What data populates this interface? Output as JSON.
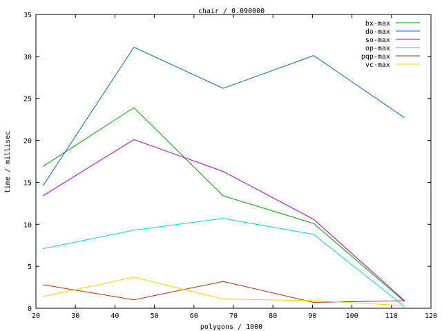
{
  "chart_data": {
    "type": "line",
    "title": "chair / 0.090000",
    "xlabel": "polygons / 1000",
    "ylabel": "time / millisec",
    "xlim": [
      20,
      120
    ],
    "ylim": [
      0,
      35
    ],
    "xticks": [
      20,
      30,
      40,
      50,
      60,
      70,
      80,
      90,
      100,
      110,
      120
    ],
    "yticks": [
      0,
      5,
      10,
      15,
      20,
      25,
      30,
      35
    ],
    "x": [
      21.8,
      44.8,
      67.4,
      90.3,
      113.3
    ],
    "grid": false,
    "legend_position": "top-right",
    "series": [
      {
        "name": "bx-max",
        "color": "#00a000",
        "values": [
          16.9,
          23.9,
          13.4,
          10.1,
          0.8
        ]
      },
      {
        "name": "do-max",
        "color": "#0066cc",
        "values": [
          14.6,
          31.1,
          26.2,
          30.1,
          22.7
        ]
      },
      {
        "name": "so-max",
        "color": "#a000c0",
        "values": [
          13.4,
          20.1,
          16.3,
          10.6,
          0.9
        ]
      },
      {
        "name": "op-max",
        "color": "#00d0e0",
        "values": [
          7.1,
          9.3,
          10.7,
          8.8,
          0.2
        ]
      },
      {
        "name": "pqp-max",
        "color": "#b03000",
        "values": [
          2.8,
          1.0,
          3.2,
          0.7,
          0.9
        ]
      },
      {
        "name": "vc-max",
        "color": "#e8d800",
        "values": [
          1.4,
          3.7,
          1.1,
          0.9,
          0.3
        ]
      }
    ]
  }
}
